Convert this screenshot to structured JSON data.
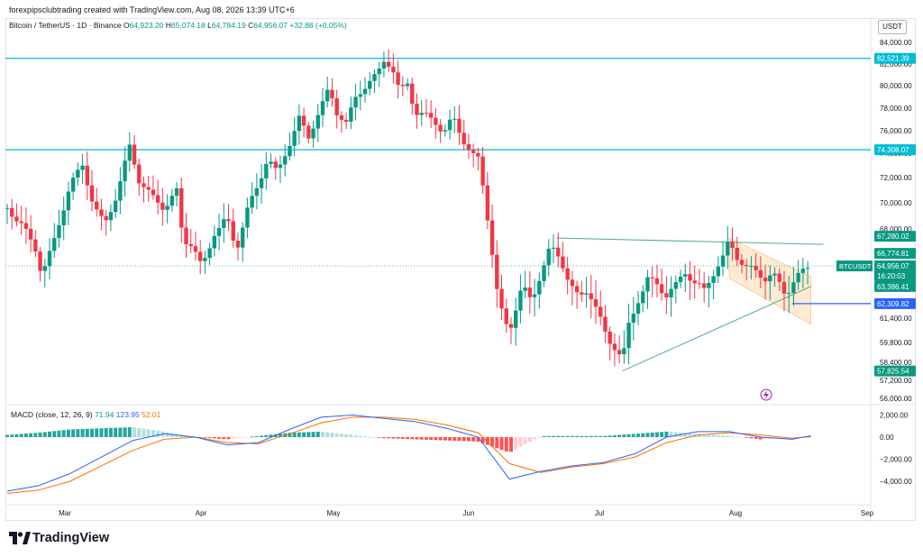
{
  "header": {
    "credit": "forexpipsclubtrading created with TradingView.com, Aug 08, 2026 13:39 UTC+6",
    "symbol": "Bitcoin / TetherUS · 1D · Binance",
    "o_label": "O",
    "o_value": "64,923.20",
    "h_label": "H",
    "h_value": "65,074.18",
    "l_label": "L",
    "l_value": "64,784.19",
    "c_label": "C",
    "c_value": "64,956.07",
    "change": "+32.88 (+0.05%)"
  },
  "currency_button": "USDT",
  "macd_panel": {
    "label": "MACD (close, 12, 26, 9)",
    "histogram": "71.94",
    "macd": "123.95",
    "signal": "52.01"
  },
  "branding": "TradingView",
  "colors": {
    "up": "#089981",
    "down": "#f23645",
    "level_line": "#00bcd4",
    "macd_line": "#2962ff",
    "signal_line": "#ff6d00",
    "hist_up": "#26a69a",
    "hist_up_light": "#b2dfdb",
    "hist_down": "#ff5252",
    "hist_down_light": "#ffcdd2",
    "channel_fill": "#fde3c4",
    "trend_line": "#4caf88",
    "support_line": "#2962ff"
  },
  "chart_data": [
    {
      "type": "candlestick",
      "series_name": "BTCUSDT",
      "x_ticks": [
        "Mar",
        "Apr",
        "May",
        "Jun",
        "Jul",
        "Aug",
        "Sep"
      ],
      "y_ticks": [
        84000,
        82000,
        80000,
        78000,
        76000,
        74000,
        72000,
        70000,
        68000,
        66000,
        64000,
        61400,
        59800,
        58400,
        57200,
        56000
      ],
      "y_tick_labels": [
        "84,000.00",
        "82,000.00",
        "80,000.00",
        "78,000.00",
        "76,000.00",
        "74,000.00",
        "72,000.00",
        "70,000.00",
        "68,000.00",
        "66,000.00",
        "64,000.00",
        "61,400.00",
        "59,800.00",
        "58,400.00",
        "57,200.00",
        "56,000.00"
      ],
      "price_labels": [
        {
          "text": "82,521.39",
          "value": 82521.39,
          "kind": "level"
        },
        {
          "text": "74,308.07",
          "value": 74308.07,
          "kind": "level"
        },
        {
          "text": "67,280.02",
          "value": 67280.02,
          "kind": "high"
        },
        {
          "text": "66,774.81",
          "value": 66774.81,
          "kind": "high"
        },
        {
          "text": "BTCUSDT",
          "value": 64956.07,
          "kind": "symbol"
        },
        {
          "text": "64,956.07",
          "value": 64956.07,
          "kind": "last"
        },
        {
          "text": "16:20:03",
          "value": 64956.07,
          "kind": "countdown"
        },
        {
          "text": "63,386.41",
          "value": 63386.41,
          "kind": "low"
        },
        {
          "text": "62,309.82",
          "value": 62309.82,
          "kind": "support"
        },
        {
          "text": "57,825.54",
          "value": 57825.54,
          "kind": "low"
        }
      ],
      "horizontal_levels": [
        82521.39,
        74308.07
      ],
      "support_level": 62309.82,
      "last_price": 64956.07,
      "close_path": [
        [
          0,
          69600
        ],
        [
          10,
          68200
        ],
        [
          18,
          66400
        ],
        [
          22,
          64200
        ],
        [
          30,
          67100
        ],
        [
          40,
          71400
        ],
        [
          48,
          73000
        ],
        [
          55,
          69800
        ],
        [
          62,
          68300
        ],
        [
          70,
          70700
        ],
        [
          78,
          74600
        ],
        [
          84,
          71800
        ],
        [
          92,
          70500
        ],
        [
          100,
          69600
        ],
        [
          108,
          70900
        ],
        [
          112,
          67100
        ],
        [
          118,
          66800
        ],
        [
          124,
          64800
        ],
        [
          132,
          67700
        ],
        [
          140,
          68800
        ],
        [
          146,
          66300
        ],
        [
          152,
          69200
        ],
        [
          160,
          71400
        ],
        [
          166,
          73700
        ],
        [
          172,
          72300
        ],
        [
          180,
          74900
        ],
        [
          186,
          77100
        ],
        [
          192,
          75400
        ],
        [
          198,
          77500
        ],
        [
          205,
          79700
        ],
        [
          210,
          77600
        ],
        [
          216,
          76700
        ],
        [
          222,
          78900
        ],
        [
          230,
          80300
        ],
        [
          236,
          81100
        ],
        [
          240,
          82300
        ],
        [
          245,
          81800
        ],
        [
          250,
          79400
        ],
        [
          255,
          80200
        ],
        [
          260,
          77600
        ],
        [
          266,
          77400
        ],
        [
          272,
          76900
        ],
        [
          278,
          75800
        ],
        [
          284,
          77200
        ],
        [
          290,
          75300
        ],
        [
          296,
          73900
        ],
        [
          300,
          73500
        ],
        [
          304,
          70700
        ],
        [
          308,
          67100
        ],
        [
          312,
          63100
        ],
        [
          316,
          61300
        ],
        [
          320,
          60600
        ],
        [
          324,
          62100
        ],
        [
          328,
          63400
        ],
        [
          334,
          62400
        ],
        [
          340,
          64300
        ],
        [
          346,
          66600
        ],
        [
          352,
          65700
        ],
        [
          358,
          63600
        ],
        [
          364,
          62600
        ],
        [
          370,
          63300
        ],
        [
          376,
          61800
        ],
        [
          382,
          60100
        ],
        [
          388,
          59400
        ],
        [
          392,
          58600
        ],
        [
          396,
          60900
        ],
        [
          402,
          62600
        ],
        [
          408,
          63800
        ],
        [
          414,
          63500
        ],
        [
          420,
          62900
        ],
        [
          426,
          63400
        ],
        [
          432,
          64400
        ],
        [
          438,
          63600
        ],
        [
          444,
          63100
        ],
        [
          450,
          64300
        ],
        [
          456,
          65700
        ],
        [
          460,
          67100
        ],
        [
          464,
          65900
        ],
        [
          470,
          64900
        ],
        [
          476,
          64600
        ],
        [
          482,
          63900
        ],
        [
          488,
          64200
        ],
        [
          492,
          63500
        ],
        [
          496,
          62900
        ],
        [
          502,
          63900
        ],
        [
          508,
          64600
        ],
        [
          512,
          65000
        ]
      ],
      "channel": {
        "upper": [
          [
            460,
            67280
          ],
          [
            512,
            64000
          ]
        ],
        "lower": [
          [
            460,
            63900
          ],
          [
            512,
            61000
          ]
        ]
      },
      "trendlines": [
        {
          "name": "resistance",
          "points": [
            [
              350,
              67280
            ],
            [
              520,
              66774
            ]
          ]
        },
        {
          "name": "rising-support",
          "points": [
            [
              392,
              57825
            ],
            [
              512,
              63386
            ]
          ]
        }
      ]
    },
    {
      "type": "macd",
      "label": "MACD (close, 12, 26, 9)",
      "y_ticks": [
        2000,
        0,
        -2000,
        -4000
      ],
      "y_tick_labels": [
        "2,000.00",
        "0.00",
        "−2,000.00",
        "−4,000.00"
      ],
      "macd_path": [
        [
          0,
          -4900
        ],
        [
          20,
          -4400
        ],
        [
          40,
          -3300
        ],
        [
          60,
          -1800
        ],
        [
          80,
          -300
        ],
        [
          100,
          300
        ],
        [
          120,
          0
        ],
        [
          140,
          -700
        ],
        [
          160,
          -500
        ],
        [
          180,
          700
        ],
        [
          200,
          1800
        ],
        [
          220,
          2000
        ],
        [
          240,
          1700
        ],
        [
          260,
          1400
        ],
        [
          280,
          800
        ],
        [
          300,
          0
        ],
        [
          320,
          -3800
        ],
        [
          340,
          -3100
        ],
        [
          360,
          -2600
        ],
        [
          380,
          -2300
        ],
        [
          400,
          -1500
        ],
        [
          420,
          0
        ],
        [
          440,
          500
        ],
        [
          460,
          500
        ],
        [
          480,
          0
        ],
        [
          500,
          -200
        ],
        [
          512,
          124
        ]
      ],
      "signal_path": [
        [
          0,
          -5100
        ],
        [
          20,
          -4800
        ],
        [
          40,
          -4000
        ],
        [
          60,
          -2600
        ],
        [
          80,
          -1200
        ],
        [
          100,
          -200
        ],
        [
          120,
          0
        ],
        [
          140,
          -500
        ],
        [
          160,
          -600
        ],
        [
          180,
          300
        ],
        [
          200,
          1300
        ],
        [
          220,
          1800
        ],
        [
          240,
          1800
        ],
        [
          260,
          1600
        ],
        [
          280,
          1100
        ],
        [
          300,
          400
        ],
        [
          320,
          -2400
        ],
        [
          340,
          -3200
        ],
        [
          360,
          -2700
        ],
        [
          380,
          -2400
        ],
        [
          400,
          -1800
        ],
        [
          420,
          -500
        ],
        [
          440,
          200
        ],
        [
          460,
          400
        ],
        [
          480,
          200
        ],
        [
          500,
          -100
        ],
        [
          512,
          52
        ]
      ],
      "histogram_last": 71.94,
      "macd_last": 123.95,
      "signal_last": 52.01
    }
  ]
}
